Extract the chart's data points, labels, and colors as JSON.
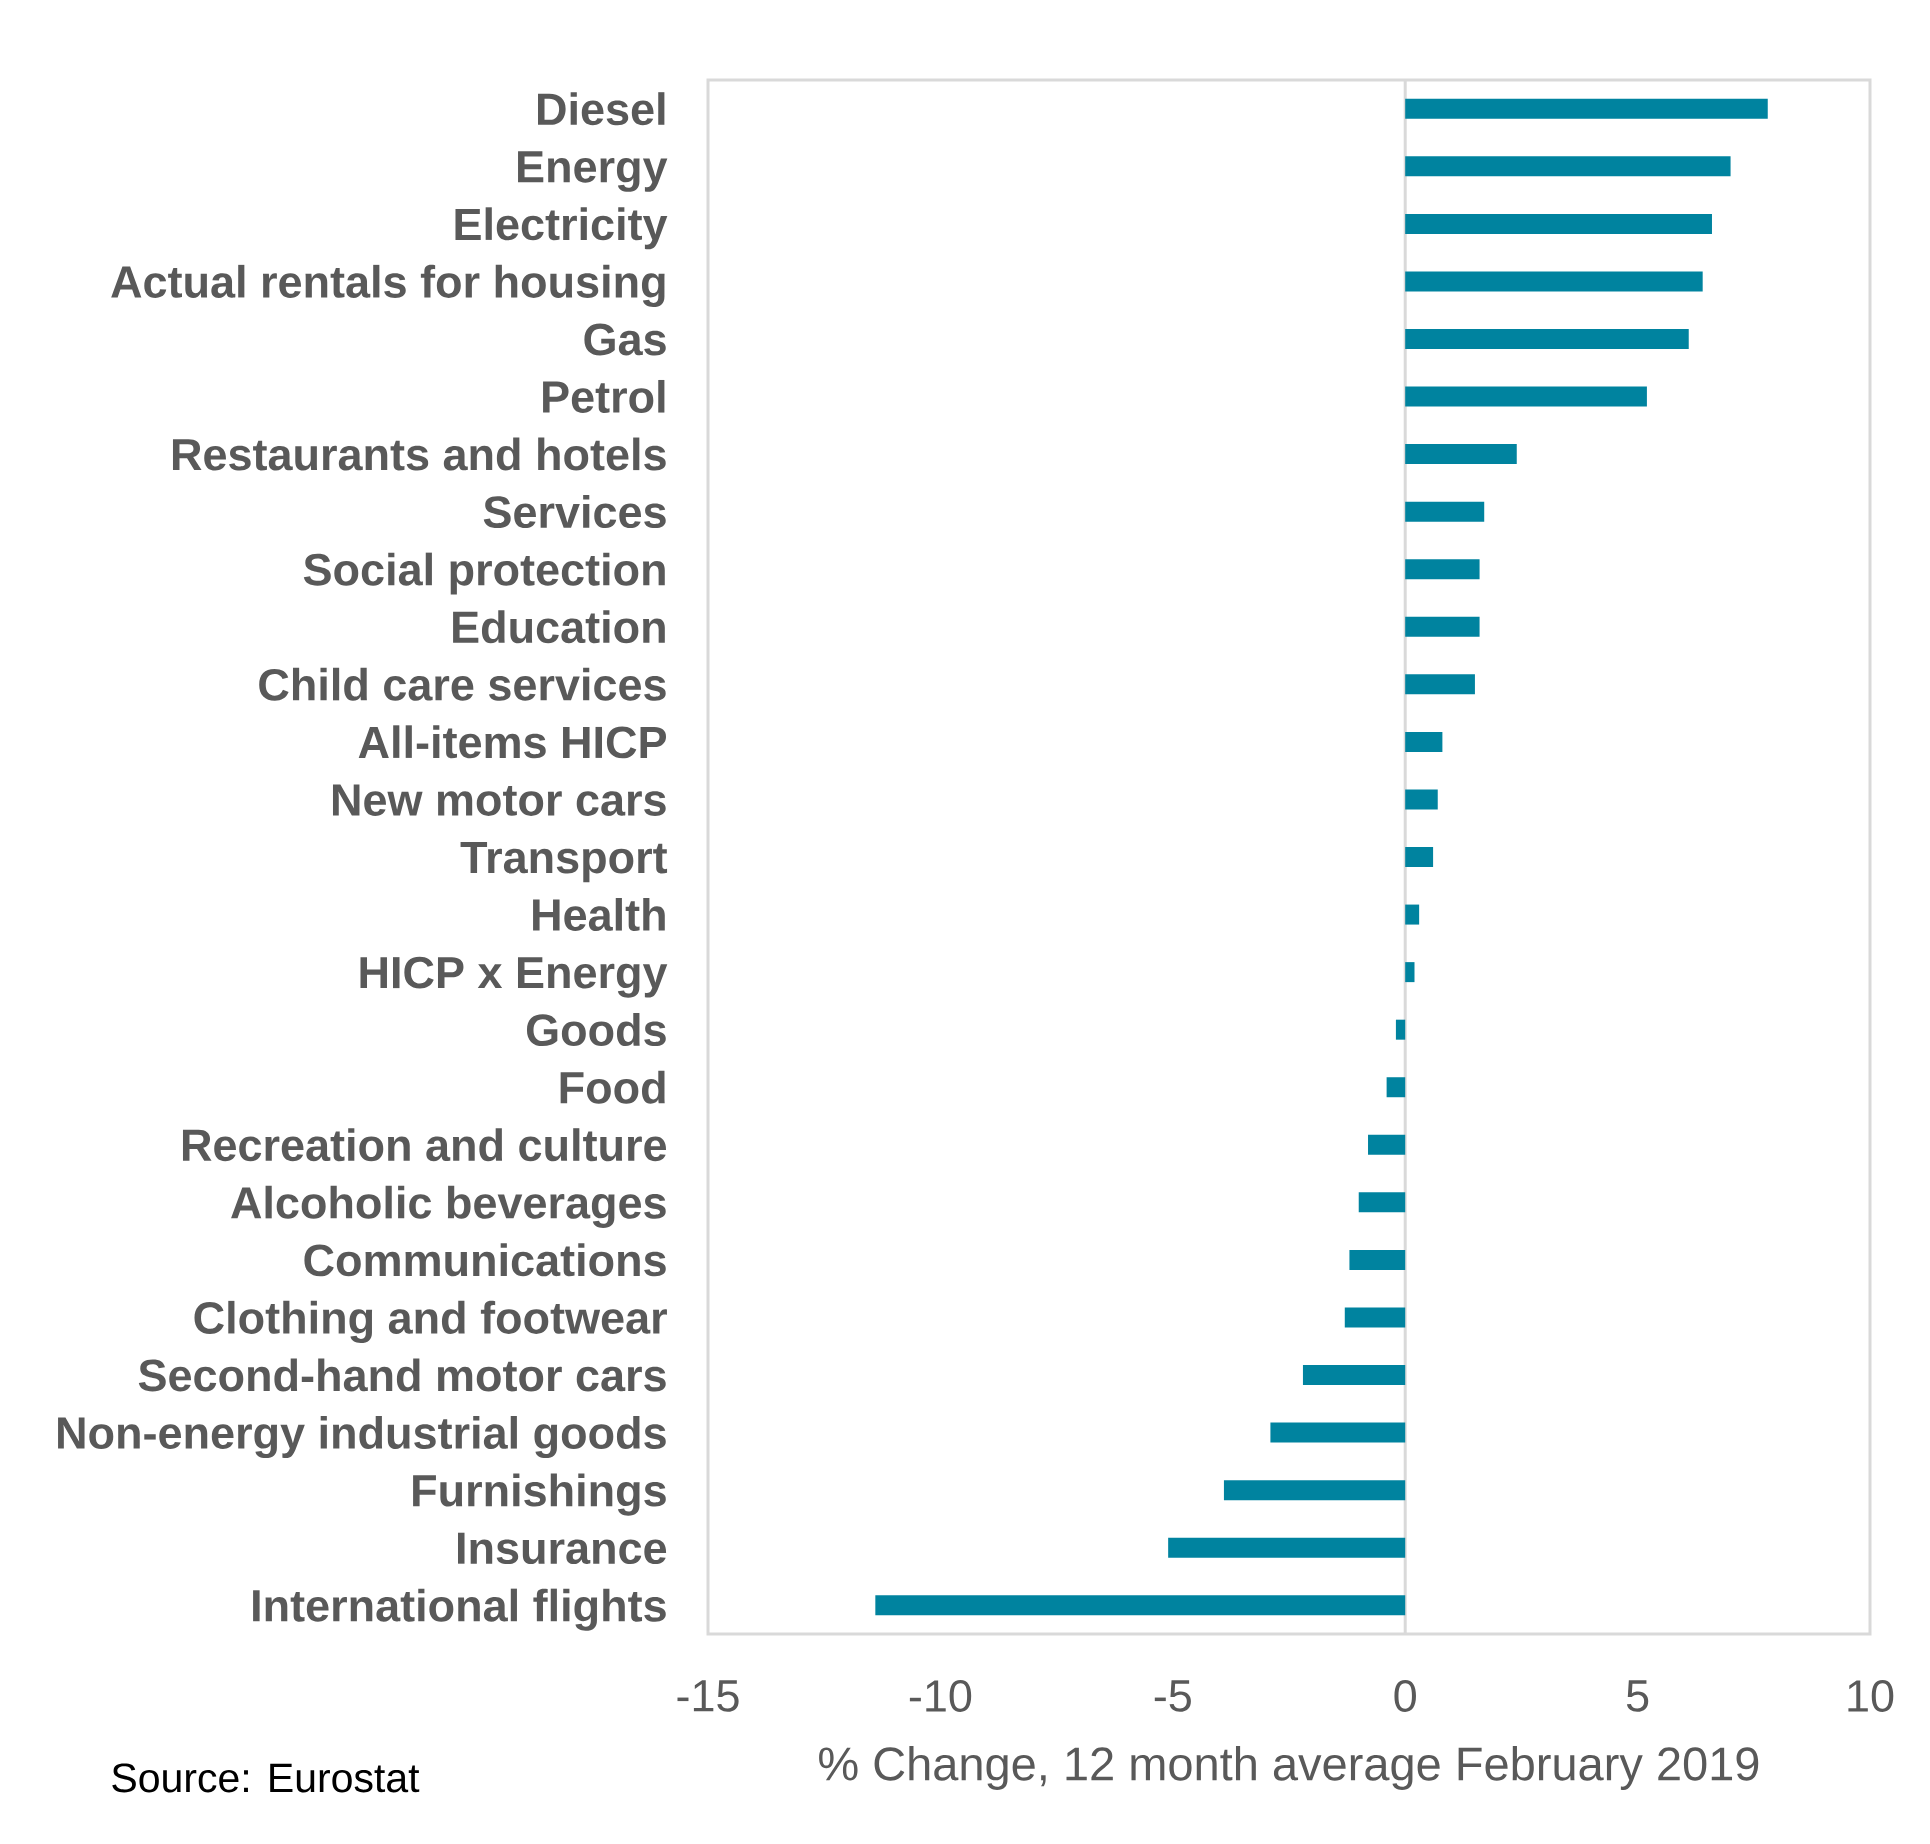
{
  "chart_data": {
    "type": "bar",
    "orientation": "horizontal",
    "categories": [
      "Diesel",
      "Energy",
      "Electricity",
      "Actual rentals for housing",
      "Gas",
      "Petrol",
      "Restaurants and hotels",
      "Services",
      "Social protection",
      "Education",
      "Child care services",
      "All-items HICP",
      "New motor cars",
      "Transport",
      "Health",
      "HICP x Energy",
      "Goods",
      "Food",
      "Recreation and culture",
      "Alcoholic beverages",
      "Communications",
      "Clothing and footwear",
      "Second-hand motor cars",
      "Non-energy industrial goods",
      "Furnishings",
      "Insurance",
      "International flights"
    ],
    "values": [
      7.8,
      7.0,
      6.6,
      6.4,
      6.1,
      5.2,
      2.4,
      1.7,
      1.6,
      1.6,
      1.5,
      0.8,
      0.7,
      0.6,
      0.3,
      0.2,
      -0.2,
      -0.4,
      -0.8,
      -1.0,
      -1.2,
      -1.3,
      -2.2,
      -2.9,
      -3.9,
      -5.1,
      -11.4
    ],
    "color": "#00839f",
    "xlim": [
      -15,
      10
    ],
    "xticks": [
      -15,
      -10,
      -5,
      0,
      5,
      10
    ],
    "xlabel": "% Change, 12 month average February 2019",
    "annotations": [
      "Source: Eurostat"
    ]
  }
}
